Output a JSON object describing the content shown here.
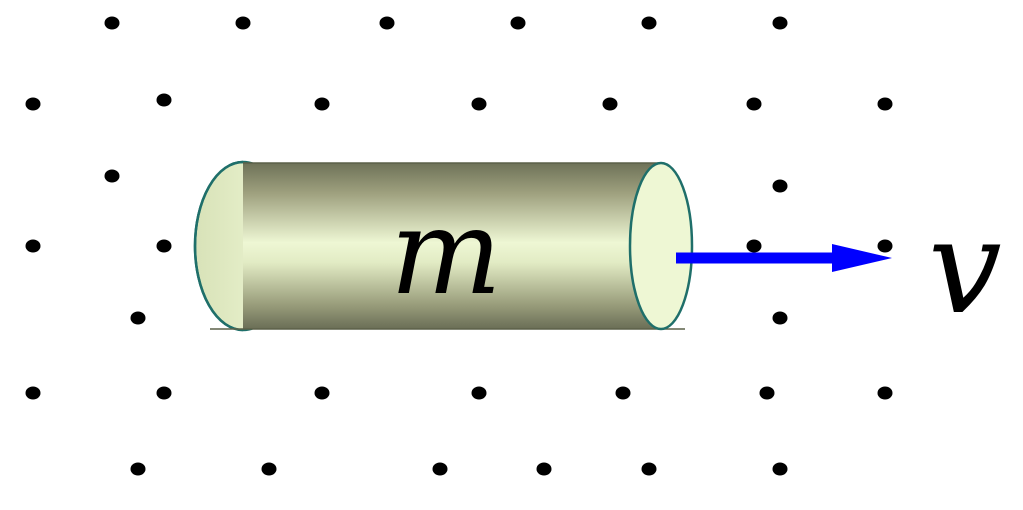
{
  "labels": {
    "mass": "m",
    "velocity": "v"
  },
  "colors": {
    "background": "#ffffff",
    "dot": "#000000",
    "cylinder_light": "#eef7d4",
    "cylinder_mid": "#b9c096",
    "cylinder_dark": "#6e7258",
    "cylinder_outline": "#1f6f6a",
    "end_cap_fill": "#eef7d4",
    "arrow": "#0000ff",
    "text": "#000000"
  },
  "field": {
    "description_symbol": "dot-grid"
  }
}
